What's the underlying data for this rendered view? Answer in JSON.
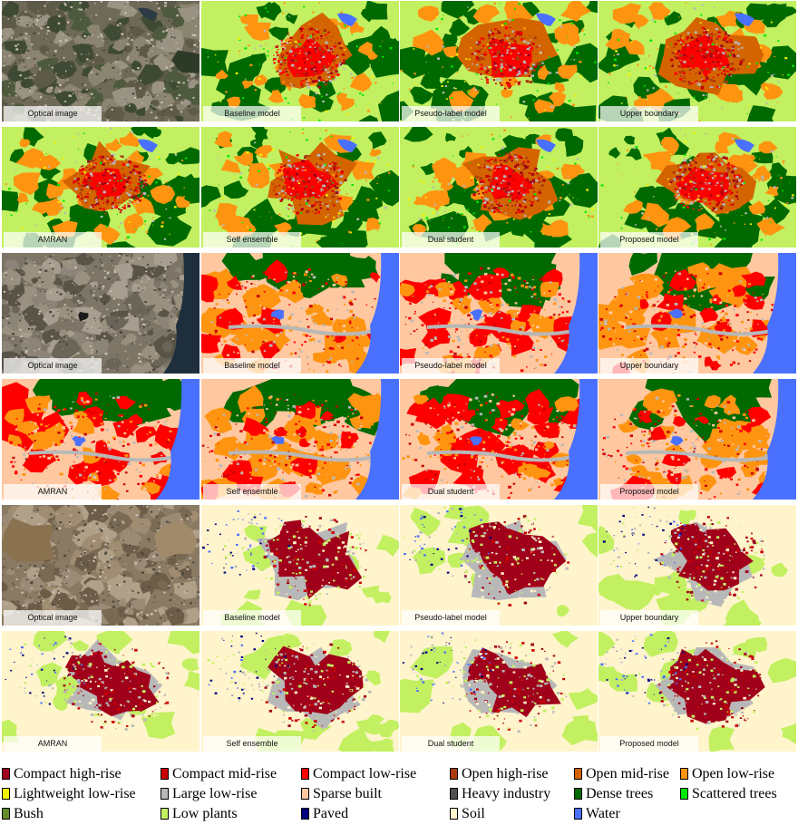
{
  "rows": [
    {
      "scene": "a",
      "tiles": [
        {
          "caption": "Optical image",
          "kind": "optical"
        },
        {
          "caption": "Baseline model",
          "kind": "map"
        },
        {
          "caption": "Pseudo-label model",
          "kind": "map"
        },
        {
          "caption": "Upper boundary",
          "kind": "map"
        }
      ]
    },
    {
      "scene": "a",
      "tiles": [
        {
          "caption": "AMRAN",
          "kind": "map"
        },
        {
          "caption": "Self ensemble",
          "kind": "map"
        },
        {
          "caption": "Dual student",
          "kind": "map"
        },
        {
          "caption": "Proposed model",
          "kind": "map"
        }
      ]
    },
    {
      "scene": "b",
      "tiles": [
        {
          "caption": "Optical image",
          "kind": "optical"
        },
        {
          "caption": "Baseline model",
          "kind": "map"
        },
        {
          "caption": "Pseudo-label model",
          "kind": "map"
        },
        {
          "caption": "Upper boundary",
          "kind": "map"
        }
      ]
    },
    {
      "scene": "b",
      "tiles": [
        {
          "caption": "AMRAN",
          "kind": "map"
        },
        {
          "caption": "Self ensemble",
          "kind": "map"
        },
        {
          "caption": "Dual student",
          "kind": "map"
        },
        {
          "caption": "Proposed model",
          "kind": "map"
        }
      ]
    },
    {
      "scene": "c",
      "tiles": [
        {
          "caption": "Optical image",
          "kind": "optical"
        },
        {
          "caption": "Baseline model",
          "kind": "map"
        },
        {
          "caption": "Pseudo-label model",
          "kind": "map"
        },
        {
          "caption": "Upper boundary",
          "kind": "map"
        }
      ]
    },
    {
      "scene": "c",
      "tiles": [
        {
          "caption": "AMRAN",
          "kind": "map"
        },
        {
          "caption": "Self ensemble",
          "kind": "map"
        },
        {
          "caption": "Dual student",
          "kind": "map"
        },
        {
          "caption": "Proposed model",
          "kind": "map"
        }
      ]
    }
  ],
  "legend": [
    {
      "label": "Compact high-rise",
      "color": "#a0001a"
    },
    {
      "label": "Compact mid-rise",
      "color": "#cc0000"
    },
    {
      "label": "Compact low-rise",
      "color": "#ff0000"
    },
    {
      "label": "Open high-rise",
      "color": "#aa3a0e"
    },
    {
      "label": "Open mid-rise",
      "color": "#d46400"
    },
    {
      "label": "Open low-rise",
      "color": "#ff9410"
    },
    {
      "label": "Lightweight low-rise",
      "color": "#f2f200"
    },
    {
      "label": "Large low-rise",
      "color": "#b8b8b8"
    },
    {
      "label": "Sparse built",
      "color": "#ffc8a0"
    },
    {
      "label": "Heavy industry",
      "color": "#505050"
    },
    {
      "label": "Dense trees",
      "color": "#006a00"
    },
    {
      "label": "Scattered trees",
      "color": "#00e800"
    },
    {
      "label": "Bush",
      "color": "#648c28"
    },
    {
      "label": "Low plants",
      "color": "#c2f060"
    },
    {
      "label": "Paved",
      "color": "#000080"
    },
    {
      "label": "Soil",
      "color": "#fff4cc"
    },
    {
      "label": "Water",
      "color": "#4a70ff"
    }
  ]
}
